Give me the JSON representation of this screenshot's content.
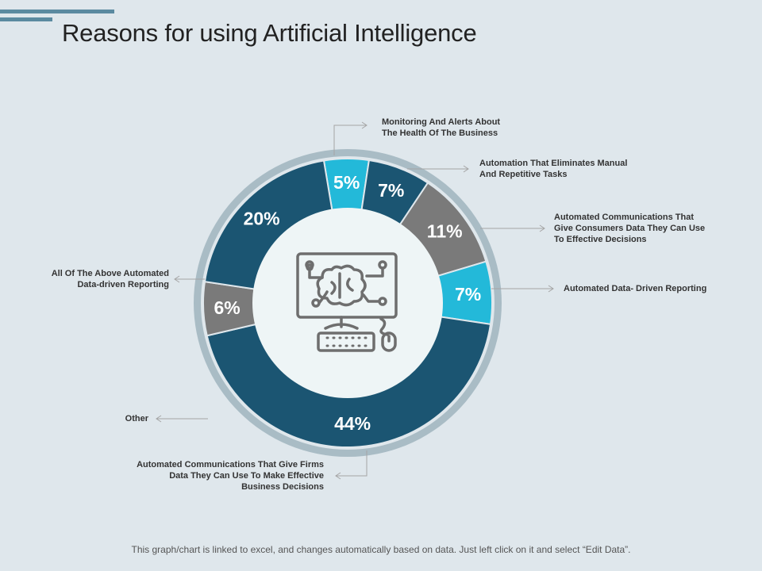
{
  "title": "Reasons for using Artificial Intelligence",
  "footer": "This graph/chart is linked to excel, and changes automatically based on data. Just left click on it and select “Edit Data”.",
  "colors": {
    "dark_blue": "#1b5572",
    "cyan": "#23b9d9",
    "gray": "#7a7a7a",
    "ring": "#a9bcc5",
    "center": "#eef5f6",
    "icon": "#6e6e6e"
  },
  "center_icon": "ai-computer-icon",
  "chart_data": {
    "type": "pie",
    "title": "Reasons for using Artificial Intelligence",
    "slices": [
      {
        "label": "Monitoring And Alerts About The Health Of The Business",
        "value": 5,
        "display": "5%",
        "color": "#23b9d9"
      },
      {
        "label": "Automation That Eliminates Manual And Repetitive Tasks",
        "value": 7,
        "display": "7%",
        "color": "#1b5572"
      },
      {
        "label": "Automated Communications That Give Consumers Data They Can Use To Effective Decisions",
        "value": 11,
        "display": "11%",
        "color": "#7a7a7a"
      },
      {
        "label": "Automated Data- Driven Reporting",
        "value": 7,
        "display": "7%",
        "color": "#23b9d9"
      },
      {
        "label": "Automated Communications That Give Firms Data They Can Use To Make Effective Business Decisions",
        "value": 44,
        "display": "44%",
        "color": "#1b5572"
      },
      {
        "label": "Other",
        "value": 6,
        "display": "6%",
        "color": "#7a7a7a"
      },
      {
        "label": "All Of The Above Automated Data-driven Reporting",
        "value": 20,
        "display": "20%",
        "color": "#1b5572"
      }
    ]
  },
  "callouts": {
    "monitoring": [
      "Monitoring And Alerts About",
      "The Health Of The Business"
    ],
    "automation": [
      "Automation That Eliminates Manual",
      "And Repetitive Tasks"
    ],
    "consumers": [
      "Automated Communications That",
      "Give Consumers Data They Can Use",
      "To Effective Decisions"
    ],
    "reporting": [
      "Automated Data- Driven Reporting"
    ],
    "all_above": [
      "All Of The Above Automated",
      "Data-driven Reporting"
    ],
    "other": [
      "Other"
    ],
    "firms": [
      "Automated Communications That Give Firms",
      "Data They Can Use To Make Effective",
      "Business Decisions"
    ]
  }
}
